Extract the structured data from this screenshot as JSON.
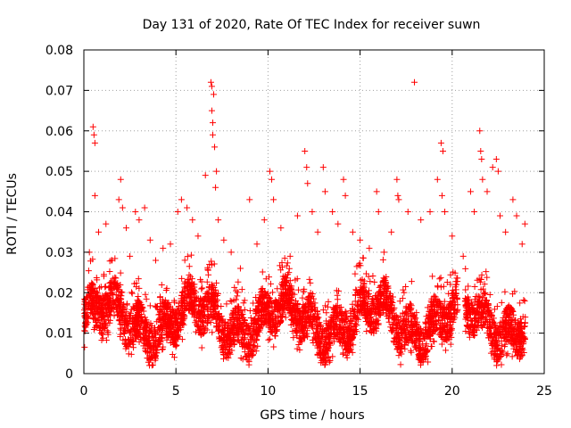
{
  "chart_data": {
    "type": "scatter",
    "title": "Day 131 of 2020, Rate Of TEC Index for receiver suwn",
    "xlabel": "GPS time / hours",
    "ylabel": "ROTI / TECUs",
    "xlim": [
      0,
      25
    ],
    "ylim": [
      0,
      0.08
    ],
    "xticks": [
      0,
      5,
      10,
      15,
      20,
      25
    ],
    "xtick_labels": [
      "0",
      "5",
      "10",
      "15",
      "20",
      "25"
    ],
    "yticks": [
      0,
      0.01,
      0.02,
      0.03,
      0.04,
      0.05,
      0.06,
      0.07,
      0.08
    ],
    "ytick_labels": [
      "0",
      "0.01",
      "0.02",
      "0.03",
      "0.04",
      "0.05",
      "0.06",
      "0.07",
      "0.08"
    ],
    "grid": true,
    "marker": "plus",
    "color": "#ff0000",
    "series": [
      {
        "name": "ROTI",
        "points": [
          [
            0.5,
            0.061
          ],
          [
            0.55,
            0.059
          ],
          [
            0.6,
            0.057
          ],
          [
            0.6,
            0.044
          ],
          [
            0.3,
            0.03
          ],
          [
            0.8,
            0.035
          ],
          [
            1.2,
            0.037
          ],
          [
            1.5,
            0.028
          ],
          [
            1.9,
            0.043
          ],
          [
            2.0,
            0.048
          ],
          [
            2.1,
            0.041
          ],
          [
            2.3,
            0.036
          ],
          [
            2.5,
            0.029
          ],
          [
            2.8,
            0.04
          ],
          [
            3.0,
            0.038
          ],
          [
            3.3,
            0.041
          ],
          [
            3.6,
            0.033
          ],
          [
            3.9,
            0.028
          ],
          [
            4.3,
            0.031
          ],
          [
            4.7,
            0.032
          ],
          [
            5.1,
            0.04
          ],
          [
            5.3,
            0.043
          ],
          [
            5.6,
            0.041
          ],
          [
            5.9,
            0.038
          ],
          [
            6.2,
            0.034
          ],
          [
            6.6,
            0.049
          ],
          [
            6.9,
            0.072
          ],
          [
            6.95,
            0.071
          ],
          [
            6.95,
            0.065
          ],
          [
            7.0,
            0.062
          ],
          [
            7.05,
            0.069
          ],
          [
            7.0,
            0.059
          ],
          [
            7.1,
            0.056
          ],
          [
            7.2,
            0.05
          ],
          [
            7.15,
            0.046
          ],
          [
            7.3,
            0.038
          ],
          [
            7.6,
            0.033
          ],
          [
            8.0,
            0.03
          ],
          [
            8.5,
            0.026
          ],
          [
            9.0,
            0.043
          ],
          [
            9.4,
            0.032
          ],
          [
            9.8,
            0.038
          ],
          [
            10.1,
            0.05
          ],
          [
            10.2,
            0.048
          ],
          [
            10.3,
            0.043
          ],
          [
            10.7,
            0.036
          ],
          [
            11.2,
            0.029
          ],
          [
            11.6,
            0.039
          ],
          [
            12.0,
            0.055
          ],
          [
            12.1,
            0.051
          ],
          [
            12.15,
            0.047
          ],
          [
            12.4,
            0.04
          ],
          [
            12.7,
            0.035
          ],
          [
            13.0,
            0.051
          ],
          [
            13.1,
            0.045
          ],
          [
            13.5,
            0.04
          ],
          [
            13.8,
            0.037
          ],
          [
            14.1,
            0.048
          ],
          [
            14.2,
            0.044
          ],
          [
            14.6,
            0.035
          ],
          [
            15.0,
            0.033
          ],
          [
            15.5,
            0.031
          ],
          [
            15.9,
            0.045
          ],
          [
            16.0,
            0.04
          ],
          [
            16.3,
            0.03
          ],
          [
            16.7,
            0.035
          ],
          [
            17.0,
            0.048
          ],
          [
            17.05,
            0.044
          ],
          [
            17.1,
            0.043
          ],
          [
            17.6,
            0.04
          ],
          [
            17.95,
            0.072
          ],
          [
            18.3,
            0.038
          ],
          [
            18.8,
            0.04
          ],
          [
            19.2,
            0.048
          ],
          [
            19.4,
            0.057
          ],
          [
            19.5,
            0.055
          ],
          [
            19.45,
            0.044
          ],
          [
            19.6,
            0.04
          ],
          [
            20.0,
            0.034
          ],
          [
            20.6,
            0.029
          ],
          [
            21.0,
            0.045
          ],
          [
            21.2,
            0.04
          ],
          [
            21.5,
            0.06
          ],
          [
            21.55,
            0.055
          ],
          [
            21.6,
            0.053
          ],
          [
            21.65,
            0.048
          ],
          [
            21.9,
            0.045
          ],
          [
            22.2,
            0.051
          ],
          [
            22.4,
            0.053
          ],
          [
            22.5,
            0.05
          ],
          [
            22.6,
            0.039
          ],
          [
            22.9,
            0.035
          ],
          [
            23.3,
            0.043
          ],
          [
            23.5,
            0.039
          ],
          [
            23.8,
            0.032
          ],
          [
            23.95,
            0.037
          ]
        ]
      }
    ]
  }
}
